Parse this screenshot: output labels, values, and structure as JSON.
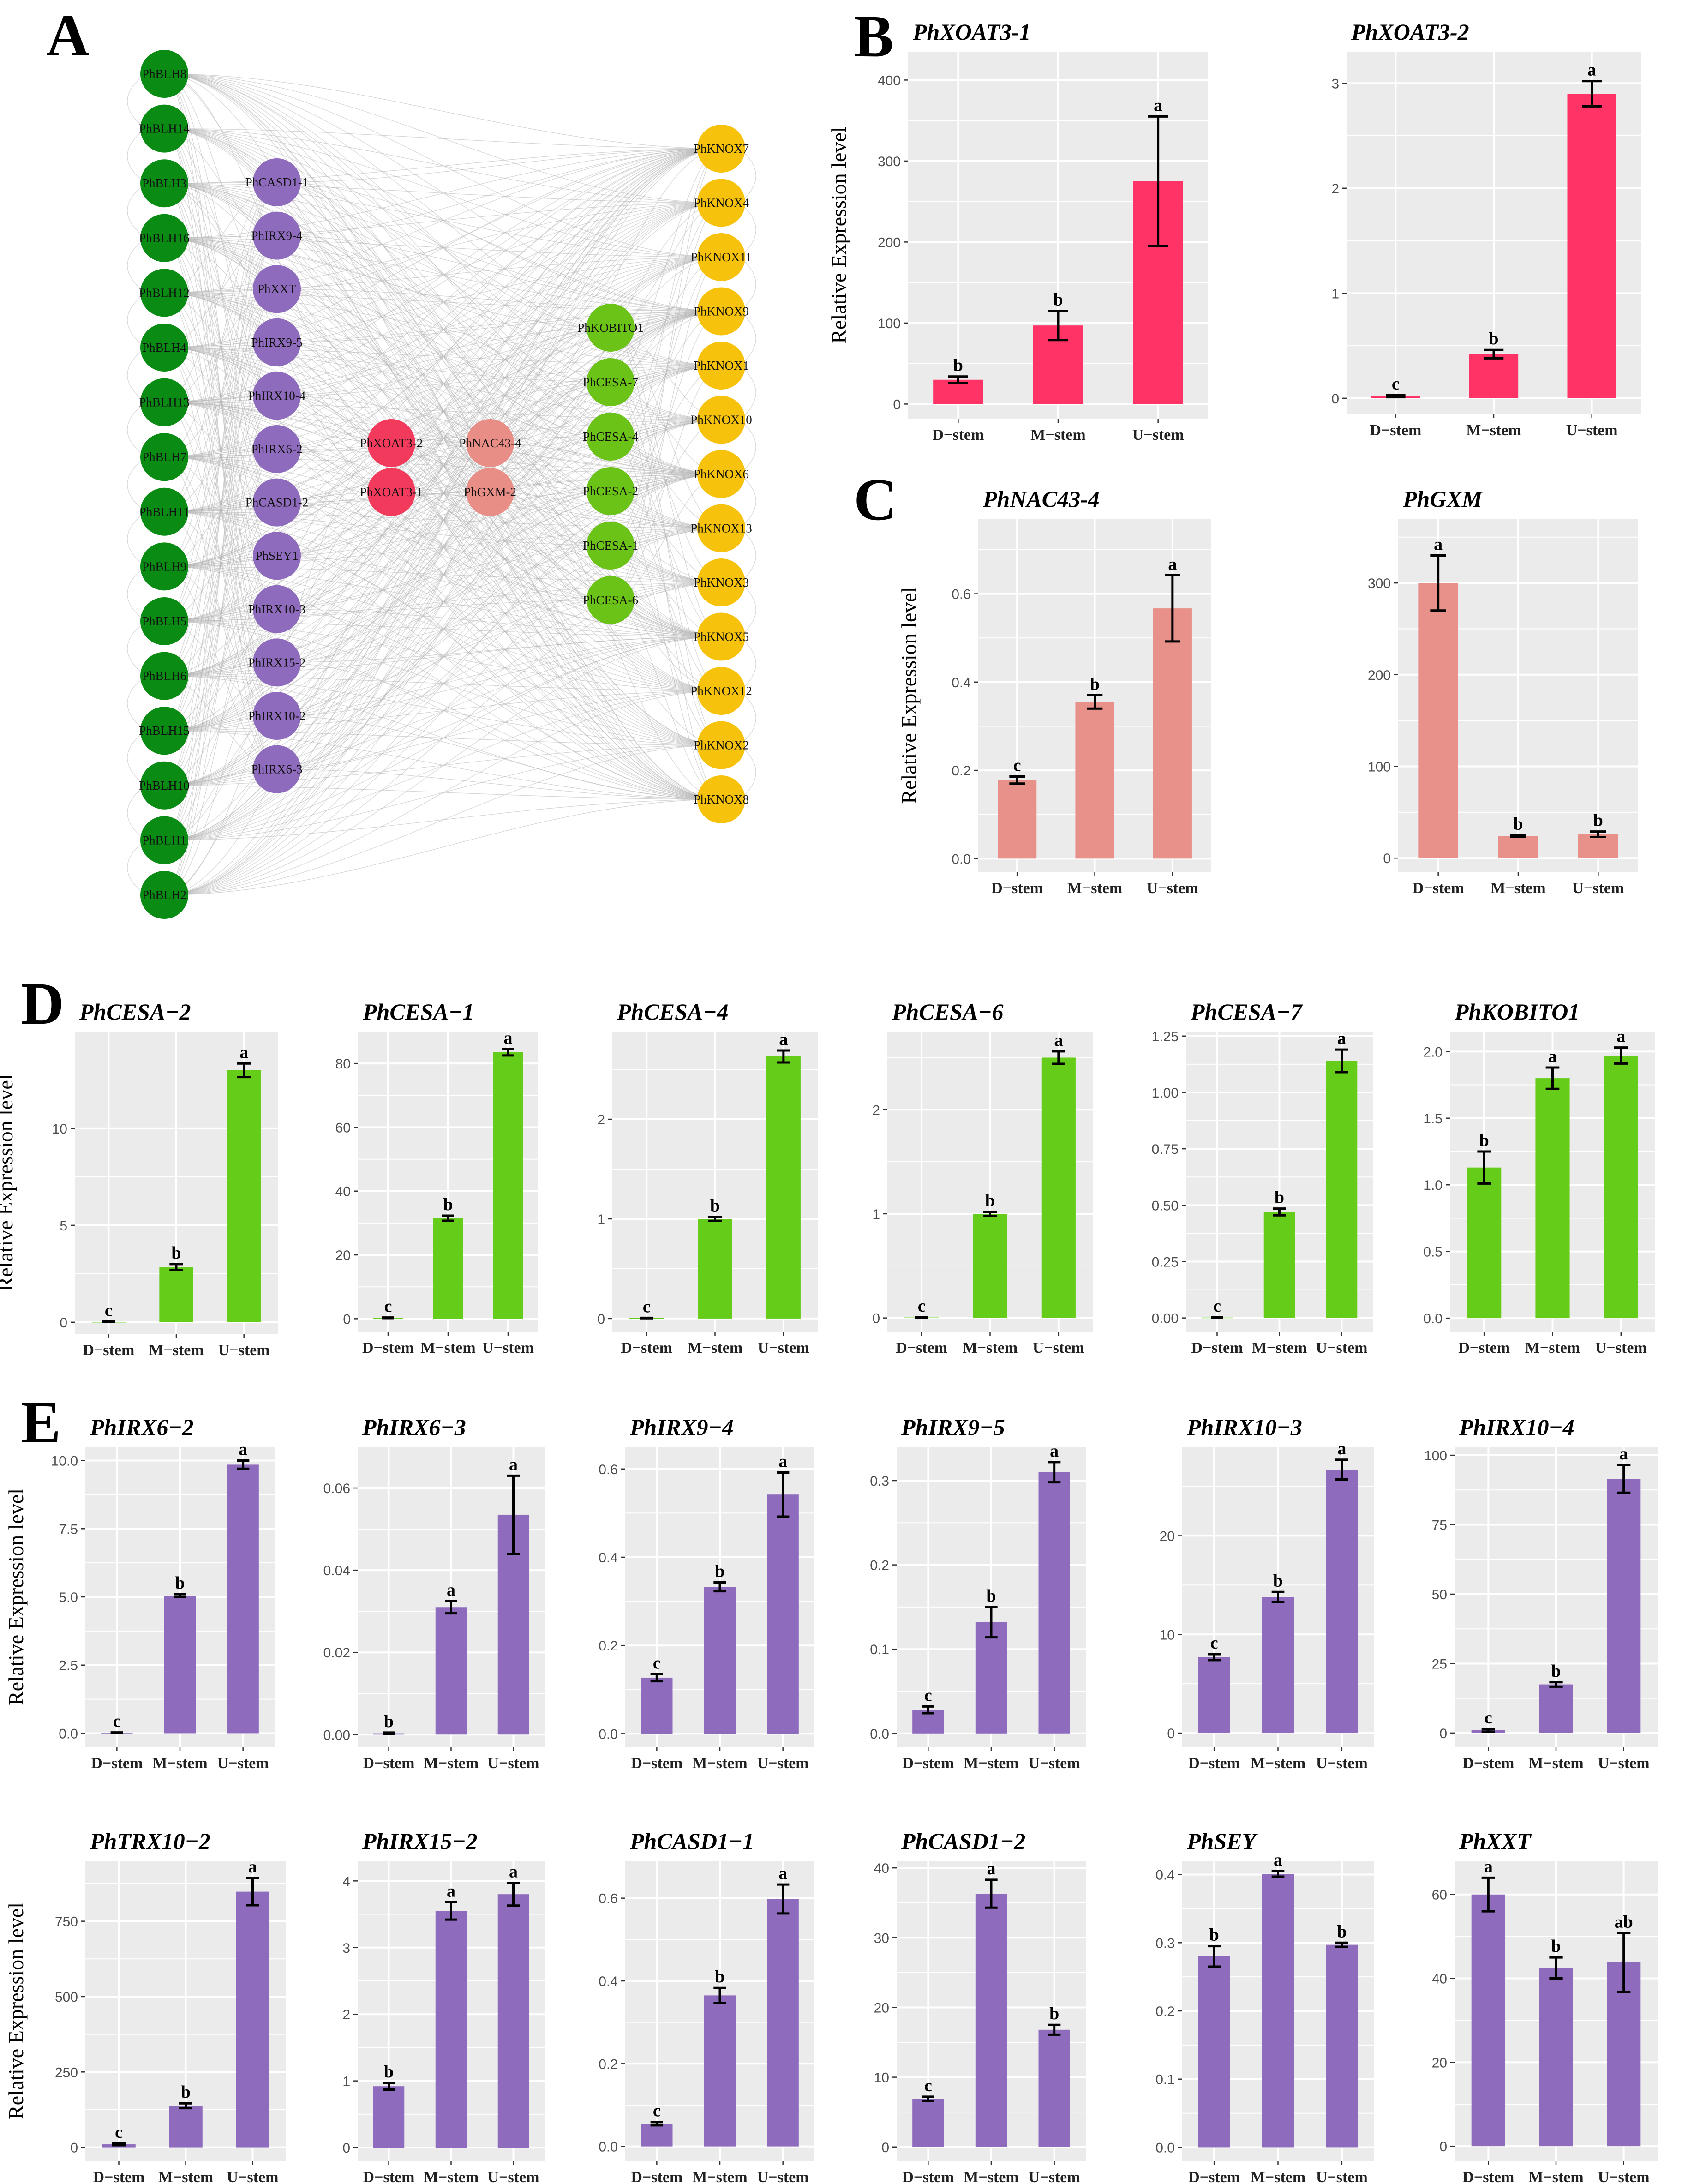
{
  "panels": {
    "A": "A",
    "B": "B",
    "C": "C",
    "D": "D",
    "E": "E"
  },
  "colors": {
    "blh": "#0a8c14",
    "irx": "#8e6bbd",
    "xoat": "#f23a5c",
    "nac": "#e98e87",
    "cesa": "#6cc317",
    "knox": "#f7c20c",
    "panel_bg": "#ebebeb",
    "grid": "#ffffff"
  },
  "network": {
    "blh": [
      "PhBLH8",
      "PhBLH14",
      "PhBLH3",
      "PhBLH16",
      "PhBLH12",
      "PhBLH4",
      "PhBLH13",
      "PhBLH7",
      "PhBLH11",
      "PhBLH9",
      "PhBLH5",
      "PhBLH6",
      "PhBLH15",
      "PhBLH10",
      "PhBLH1",
      "PhBLH2"
    ],
    "irx": [
      "PhCASD1-1",
      "PhIRX9-4",
      "PhXXT",
      "PhIRX9-5",
      "PhIRX10-4",
      "PhIRX6-2",
      "PhCASD1-2",
      "PhSEY1",
      "PhIRX10-3",
      "PhIRX15-2",
      "PhIRX10-2",
      "PhIRX6-3"
    ],
    "xoat": [
      "PhXOAT3-2",
      "PhXOAT3-1"
    ],
    "nac": [
      "PhNAC43-4",
      "PhGXM-2"
    ],
    "cesa": [
      "PhKOBITO1",
      "PhCESA-7",
      "PhCESA-4",
      "PhCESA-2",
      "PhCESA-1",
      "PhCESA-6"
    ],
    "knox": [
      "PhKNOX7",
      "PhKNOX4",
      "PhKNOX11",
      "PhKNOX9",
      "PhKNOX1",
      "PhKNOX10",
      "PhKNOX6",
      "PhKNOX13",
      "PhKNOX3",
      "PhKNOX5",
      "PhKNOX12",
      "PhKNOX2",
      "PhKNOX8"
    ]
  },
  "chart_data": [
    {
      "id": "xoat3-1",
      "type": "bar",
      "title": "PhXOAT3-1",
      "ylabel": "Relative Expression level",
      "categories": [
        "D−stem",
        "M−stem",
        "U−stem"
      ],
      "values": [
        30,
        97,
        275
      ],
      "errors": [
        4,
        18,
        80
      ],
      "letters": [
        "b",
        "b",
        "a"
      ],
      "ylim": [
        -18,
        435
      ],
      "yticks": [
        0,
        100,
        200,
        300,
        400
      ],
      "yticklabels": [
        "0",
        "100",
        "200",
        "300",
        "400"
      ],
      "color": "#ff3366"
    },
    {
      "id": "xoat3-2",
      "type": "bar",
      "title": "PhXOAT3-2",
      "ylabel": "",
      "categories": [
        "D−stem",
        "M−stem",
        "U−stem"
      ],
      "values": [
        0.02,
        0.42,
        2.9
      ],
      "errors": [
        0.01,
        0.04,
        0.12
      ],
      "letters": [
        "c",
        "b",
        "a"
      ],
      "ylim": [
        -0.15,
        3.3
      ],
      "yticks": [
        0,
        1,
        2,
        3
      ],
      "yticklabels": [
        "0",
        "1",
        "2",
        "3"
      ],
      "color": "#ff3366"
    },
    {
      "id": "nac43-4",
      "type": "bar",
      "title": "PhNAC43-4",
      "ylabel": "Relative Expression level",
      "categories": [
        "D−stem",
        "M−stem",
        "U−stem"
      ],
      "values": [
        0.178,
        0.355,
        0.567
      ],
      "errors": [
        0.008,
        0.015,
        0.075
      ],
      "letters": [
        "c",
        "b",
        "a"
      ],
      "ylim": [
        -0.03,
        0.77
      ],
      "yticks": [
        0,
        0.2,
        0.4,
        0.6
      ],
      "yticklabels": [
        "0.0",
        "0.2",
        "0.4",
        "0.6"
      ],
      "color": "#e8908a"
    },
    {
      "id": "gxm",
      "type": "bar",
      "title": "PhGXM",
      "ylabel": "",
      "categories": [
        "D−stem",
        "M−stem",
        "U−stem"
      ],
      "values": [
        300,
        24,
        26
      ],
      "errors": [
        30,
        1,
        3
      ],
      "letters": [
        "a",
        "b",
        "b"
      ],
      "ylim": [
        -15,
        370
      ],
      "yticks": [
        0,
        100,
        200,
        300
      ],
      "yticklabels": [
        "0",
        "100",
        "200",
        "300"
      ],
      "color": "#e8908a"
    },
    {
      "id": "cesa-2",
      "type": "bar",
      "title": "PhCESA−2",
      "ylabel": "Relative Expression level",
      "categories": [
        "D−stem",
        "M−stem",
        "U−stem"
      ],
      "values": [
        0.02,
        2.85,
        13
      ],
      "errors": [
        0.01,
        0.15,
        0.35
      ],
      "letters": [
        "c",
        "b",
        "a"
      ],
      "ylim": [
        -0.6,
        15
      ],
      "yticks": [
        0,
        5,
        10
      ],
      "yticklabels": [
        "0",
        "5",
        "10"
      ],
      "color": "#66cc1a"
    },
    {
      "id": "cesa-1",
      "type": "bar",
      "title": "PhCESA−1",
      "ylabel": "",
      "categories": [
        "D−stem",
        "M−stem",
        "U−stem"
      ],
      "values": [
        0.3,
        31.5,
        83.5
      ],
      "errors": [
        0.1,
        0.8,
        1
      ],
      "letters": [
        "c",
        "b",
        "a"
      ],
      "ylim": [
        -4,
        90
      ],
      "yticks": [
        0,
        20,
        40,
        60,
        80
      ],
      "yticklabels": [
        "0",
        "20",
        "40",
        "60",
        "80"
      ],
      "color": "#66cc1a"
    },
    {
      "id": "cesa-4",
      "type": "bar",
      "title": "PhCESA−4",
      "ylabel": "",
      "categories": [
        "D−stem",
        "M−stem",
        "U−stem"
      ],
      "values": [
        0.005,
        1.0,
        2.63
      ],
      "errors": [
        0.002,
        0.02,
        0.06
      ],
      "letters": [
        "c",
        "b",
        "a"
      ],
      "ylim": [
        -0.13,
        2.88
      ],
      "yticks": [
        0,
        1,
        2
      ],
      "yticklabels": [
        "0",
        "1",
        "2"
      ],
      "color": "#66cc1a"
    },
    {
      "id": "cesa-6",
      "type": "bar",
      "title": "PhCESA−6",
      "ylabel": "",
      "categories": [
        "D−stem",
        "M−stem",
        "U−stem"
      ],
      "values": [
        0.005,
        1.0,
        2.5
      ],
      "errors": [
        0.002,
        0.02,
        0.06
      ],
      "letters": [
        "c",
        "b",
        "a"
      ],
      "ylim": [
        -0.13,
        2.75
      ],
      "yticks": [
        0,
        1,
        2
      ],
      "yticklabels": [
        "0",
        "1",
        "2"
      ],
      "color": "#66cc1a"
    },
    {
      "id": "cesa-7",
      "type": "bar",
      "title": "PhCESA−7",
      "ylabel": "",
      "categories": [
        "D−stem",
        "M−stem",
        "U−stem"
      ],
      "values": [
        0.002,
        0.47,
        1.14
      ],
      "errors": [
        0.001,
        0.015,
        0.05
      ],
      "letters": [
        "c",
        "b",
        "a"
      ],
      "ylim": [
        -0.06,
        1.27
      ],
      "yticks": [
        0,
        0.25,
        0.5,
        0.75,
        1.0,
        1.25
      ],
      "yticklabels": [
        "0.00",
        "0.25",
        "0.50",
        "0.75",
        "1.00",
        "1.25"
      ],
      "color": "#66cc1a"
    },
    {
      "id": "kobito1",
      "type": "bar",
      "title": "PhKOBITO1",
      "ylabel": "",
      "categories": [
        "D−stem",
        "M−stem",
        "U−stem"
      ],
      "values": [
        1.13,
        1.8,
        1.97
      ],
      "errors": [
        0.12,
        0.08,
        0.06
      ],
      "letters": [
        "b",
        "a",
        "a"
      ],
      "ylim": [
        -0.1,
        2.15
      ],
      "yticks": [
        0,
        0.5,
        1.0,
        1.5,
        2.0
      ],
      "yticklabels": [
        "0.0",
        "0.5",
        "1.0",
        "1.5",
        "2.0"
      ],
      "color": "#66cc1a"
    },
    {
      "id": "irx6-2",
      "type": "bar",
      "title": "PhIRX6−2",
      "ylabel": "Relative Expression level",
      "categories": [
        "D−stem",
        "M−stem",
        "U−stem"
      ],
      "values": [
        0.02,
        5.05,
        9.85
      ],
      "errors": [
        0.01,
        0.05,
        0.15
      ],
      "letters": [
        "c",
        "b",
        "a"
      ],
      "ylim": [
        -0.5,
        10.5
      ],
      "yticks": [
        0,
        2.5,
        5,
        7.5,
        10
      ],
      "yticklabels": [
        "0.0",
        "2.5",
        "5.0",
        "7.5",
        "10.0"
      ],
      "color": "#8e6bbd"
    },
    {
      "id": "irx6-3",
      "type": "bar",
      "title": "PhIRX6−3",
      "ylabel": "",
      "categories": [
        "D−stem",
        "M−stem",
        "U−stem"
      ],
      "values": [
        0.0003,
        0.031,
        0.0535
      ],
      "errors": [
        0.0002,
        0.0015,
        0.0095
      ],
      "letters": [
        "b",
        "a",
        "a"
      ],
      "ylim": [
        -0.003,
        0.07
      ],
      "yticks": [
        0,
        0.02,
        0.04,
        0.06
      ],
      "yticklabels": [
        "0.00",
        "0.02",
        "0.04",
        "0.06"
      ],
      "color": "#8e6bbd"
    },
    {
      "id": "irx9-4",
      "type": "bar",
      "title": "PhIRX9−4",
      "ylabel": "",
      "categories": [
        "D−stem",
        "M−stem",
        "U−stem"
      ],
      "values": [
        0.127,
        0.333,
        0.542
      ],
      "errors": [
        0.008,
        0.01,
        0.05
      ],
      "letters": [
        "c",
        "b",
        "a"
      ],
      "ylim": [
        -0.03,
        0.65
      ],
      "yticks": [
        0,
        0.2,
        0.4,
        0.6
      ],
      "yticklabels": [
        "0.0",
        "0.2",
        "0.4",
        "0.6"
      ],
      "color": "#8e6bbd"
    },
    {
      "id": "irx9-5",
      "type": "bar",
      "title": "PhIRX9−5",
      "ylabel": "",
      "categories": [
        "D−stem",
        "M−stem",
        "U−stem"
      ],
      "values": [
        0.028,
        0.132,
        0.31
      ],
      "errors": [
        0.004,
        0.018,
        0.012
      ],
      "letters": [
        "c",
        "b",
        "a"
      ],
      "ylim": [
        -0.016,
        0.34
      ],
      "yticks": [
        0,
        0.1,
        0.2,
        0.3
      ],
      "yticklabels": [
        "0.0",
        "0.1",
        "0.2",
        "0.3"
      ],
      "color": "#8e6bbd"
    },
    {
      "id": "irx10-3",
      "type": "bar",
      "title": "PhIRX10−3",
      "ylabel": "",
      "categories": [
        "D−stem",
        "M−stem",
        "U−stem"
      ],
      "values": [
        7.7,
        13.8,
        26.7
      ],
      "errors": [
        0.3,
        0.5,
        1.0
      ],
      "letters": [
        "c",
        "b",
        "a"
      ],
      "ylim": [
        -1.4,
        29
      ],
      "yticks": [
        0,
        10,
        20
      ],
      "yticklabels": [
        "0",
        "10",
        "20"
      ],
      "color": "#8e6bbd"
    },
    {
      "id": "irx10-4",
      "type": "bar",
      "title": "PhIRX10−4",
      "ylabel": "",
      "categories": [
        "D−stem",
        "M−stem",
        "U−stem"
      ],
      "values": [
        1,
        17.5,
        91.5
      ],
      "errors": [
        0.5,
        0.8,
        5
      ],
      "letters": [
        "c",
        "b",
        "a"
      ],
      "ylim": [
        -5,
        103
      ],
      "yticks": [
        0,
        25,
        50,
        75,
        100
      ],
      "yticklabels": [
        "0",
        "25",
        "50",
        "75",
        "100"
      ],
      "color": "#8e6bbd"
    },
    {
      "id": "trx10-2",
      "type": "bar",
      "title": "PhTRX10−2",
      "ylabel": "Relative Expression level",
      "categories": [
        "D−stem",
        "M−stem",
        "U−stem"
      ],
      "values": [
        10,
        138,
        848
      ],
      "errors": [
        3,
        8,
        45
      ],
      "letters": [
        "c",
        "b",
        "a"
      ],
      "ylim": [
        -45,
        950
      ],
      "yticks": [
        0,
        250,
        500,
        750
      ],
      "yticklabels": [
        "0",
        "250",
        "500",
        "750"
      ],
      "color": "#8e6bbd"
    },
    {
      "id": "irx15-2",
      "type": "bar",
      "title": "PhIRX15−2",
      "ylabel": "",
      "categories": [
        "D−stem",
        "M−stem",
        "U−stem"
      ],
      "values": [
        0.92,
        3.55,
        3.8
      ],
      "errors": [
        0.05,
        0.13,
        0.17
      ],
      "letters": [
        "b",
        "a",
        "a"
      ],
      "ylim": [
        -0.2,
        4.3
      ],
      "yticks": [
        0,
        1,
        2,
        3,
        4
      ],
      "yticklabels": [
        "0",
        "1",
        "2",
        "3",
        "4"
      ],
      "color": "#8e6bbd"
    },
    {
      "id": "casd1-1",
      "type": "bar",
      "title": "PhCASD1−1",
      "ylabel": "",
      "categories": [
        "D−stem",
        "M−stem",
        "U−stem"
      ],
      "values": [
        0.055,
        0.365,
        0.598
      ],
      "errors": [
        0.004,
        0.018,
        0.035
      ],
      "letters": [
        "c",
        "b",
        "a"
      ],
      "ylim": [
        -0.035,
        0.69
      ],
      "yticks": [
        0,
        0.2,
        0.4,
        0.6
      ],
      "yticklabels": [
        "0.0",
        "0.2",
        "0.4",
        "0.6"
      ],
      "color": "#8e6bbd"
    },
    {
      "id": "casd1-2",
      "type": "bar",
      "title": "PhCASD1−2",
      "ylabel": "",
      "categories": [
        "D−stem",
        "M−stem",
        "U−stem"
      ],
      "values": [
        6.9,
        36.3,
        16.8
      ],
      "errors": [
        0.3,
        2.0,
        0.7
      ],
      "letters": [
        "c",
        "a",
        "b"
      ],
      "ylim": [
        -2,
        41
      ],
      "yticks": [
        0,
        10,
        20,
        30,
        40
      ],
      "yticklabels": [
        "0",
        "10",
        "20",
        "30",
        "40"
      ],
      "color": "#8e6bbd"
    },
    {
      "id": "sey",
      "type": "bar",
      "title": "PhSEY",
      "ylabel": "",
      "categories": [
        "D−stem",
        "M−stem",
        "U−stem"
      ],
      "values": [
        0.28,
        0.401,
        0.297
      ],
      "errors": [
        0.015,
        0.004,
        0.003
      ],
      "letters": [
        "b",
        "a",
        "b"
      ],
      "ylim": [
        -0.02,
        0.42
      ],
      "yticks": [
        0,
        0.1,
        0.2,
        0.3,
        0.4
      ],
      "yticklabels": [
        "0.0",
        "0.1",
        "0.2",
        "0.3",
        "0.4"
      ],
      "color": "#8e6bbd"
    },
    {
      "id": "xxt",
      "type": "bar",
      "title": "PhXXT",
      "ylabel": "",
      "categories": [
        "D−stem",
        "M−stem",
        "U−stem"
      ],
      "values": [
        60,
        42.5,
        43.8
      ],
      "errors": [
        4,
        2.5,
        7
      ],
      "letters": [
        "a",
        "b",
        "ab"
      ],
      "ylim": [
        -3.5,
        68
      ],
      "yticks": [
        0,
        20,
        40,
        60
      ],
      "yticklabels": [
        "0",
        "20",
        "40",
        "60"
      ],
      "color": "#8e6bbd"
    }
  ]
}
